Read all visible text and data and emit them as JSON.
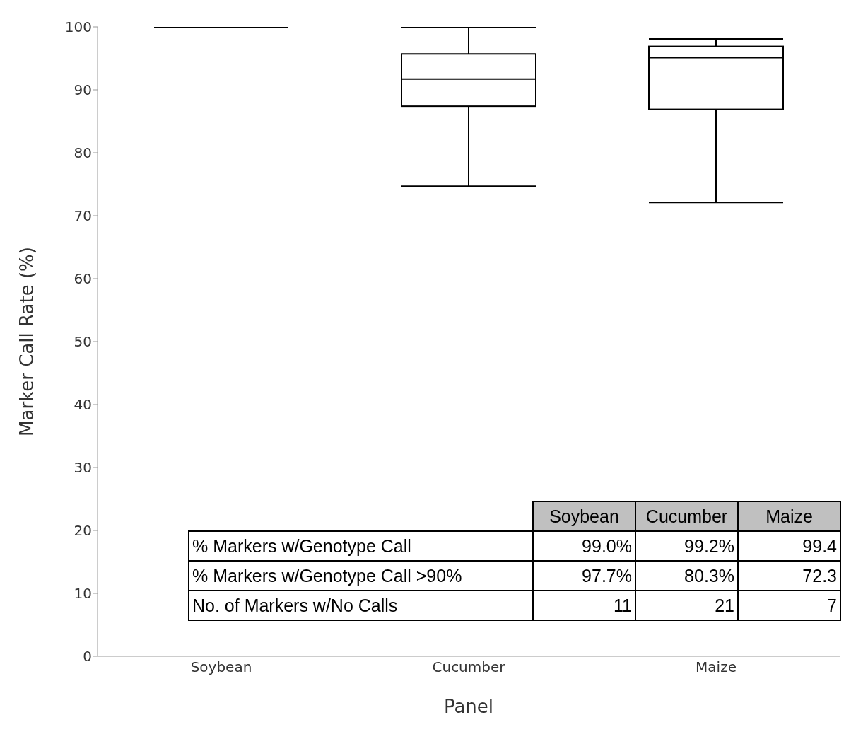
{
  "chart_data": {
    "type": "box",
    "xlabel": "Panel",
    "ylabel": "Marker Call Rate (%)",
    "categories": [
      "Soybean",
      "Cucumber",
      "Maize"
    ],
    "boxes": [
      {
        "low": 100,
        "q1": 100,
        "median": 100,
        "q3": 100,
        "high": 100
      },
      {
        "low": 74.7,
        "q1": 87.4,
        "median": 91.7,
        "q3": 95.7,
        "high": 100
      },
      {
        "low": 72.1,
        "q1": 86.9,
        "median": 95.1,
        "q3": 96.9,
        "high": 98.1
      }
    ],
    "ylim": [
      0,
      100
    ],
    "yticks": [
      0,
      10,
      20,
      30,
      40,
      50,
      60,
      70,
      80,
      90,
      100
    ],
    "grid": false,
    "legend": false,
    "annotations": [
      "Soybean",
      "Cucumber",
      "Maize",
      "% Markers w/Genotype Call",
      "99.0%",
      "99.2%",
      "99.4",
      "% Markers w/Genotype Call >90%",
      "97.7%",
      "80.3%",
      "72.3",
      "No. of Markers w/No Calls",
      "11",
      "21",
      "7"
    ]
  }
}
